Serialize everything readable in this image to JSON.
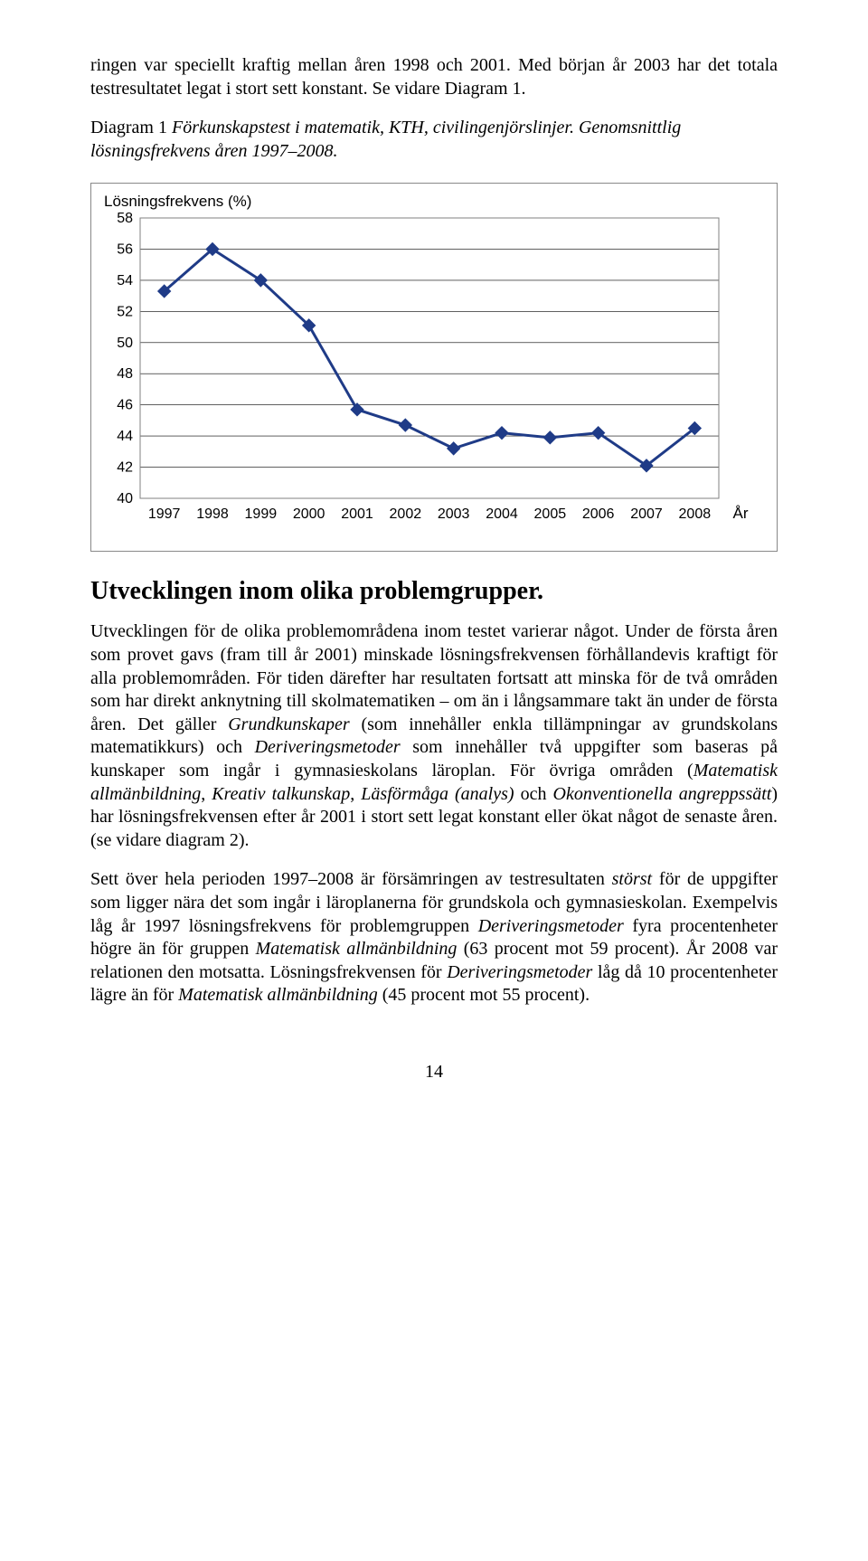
{
  "para1": "ringen var speciellt kraftig mellan åren 1998 och 2001. Med början år 2003 har det totala testresultatet legat i stort sett konstant. Se vidare Diagram 1.",
  "caption_lead": "Diagram 1",
  "caption_rest": " Förkunskapstest i matematik, KTH, civilingenjörslinjer. Genomsnittlig lösningsfrekvens åren 1997–2008.",
  "chart": {
    "type": "line",
    "y_title": "Lösningsfrekvens (%)",
    "x_axis_label": "År",
    "years": [
      "1997",
      "1998",
      "1999",
      "2000",
      "2001",
      "2002",
      "2003",
      "2004",
      "2005",
      "2006",
      "2007",
      "2008"
    ],
    "values": [
      53.3,
      56.0,
      54.0,
      51.1,
      45.7,
      44.7,
      43.2,
      44.2,
      43.9,
      44.2,
      42.1,
      44.5
    ],
    "y_ticks": [
      40,
      42,
      44,
      46,
      48,
      50,
      52,
      54,
      56,
      58
    ],
    "ylim": [
      40,
      58
    ],
    "line_color": "#1f3b87",
    "line_width": 3,
    "marker_fill": "#1f3b87",
    "marker_size": 7,
    "plot_border_color": "#808080",
    "gridline_color": "#000000",
    "background": "#ffffff",
    "tick_font_size": 16,
    "label_font_size": 17
  },
  "h2": "Utvecklingen inom olika problemgrupper.",
  "para2_a": "Utvecklingen för de olika problemområdena inom testet varierar något. Under de första åren som provet gavs (fram till år 2001) minskade lösningsfrekvensen förhållandevis kraftigt för alla problemområden. För tiden därefter har resultaten fortsatt att minska för de två områden som har direkt anknytning till skolmatematiken – om än i långsammare takt än under de första åren. Det gäller ",
  "para2_term1": "Grundkunskaper",
  "para2_b": " (som innehåller enkla tillämpningar av grundskolans matematikkurs) och ",
  "para2_term2": "Deriveringsmetoder",
  "para2_c": " som innehåller två uppgifter som baseras på kunskaper som ingår i gymnasieskolans läroplan. För övriga områden (",
  "para2_term3": "Matematisk allmänbildning",
  "para2_d": ", ",
  "para2_term4": "Kreativ talkunskap",
  "para2_e": ", ",
  "para2_term5": "Läsförmåga (analys)",
  "para2_f": " och ",
  "para2_term6": "Okonventionella angreppssätt",
  "para2_g": ") har lösningsfrekvensen efter år 2001 i stort sett legat konstant eller ökat något de senaste åren. (se vidare diagram 2).",
  "para3_a": "Sett över hela perioden 1997–2008 är försämringen av testresultaten ",
  "para3_term1": "störst",
  "para3_b": " för de uppgifter som ligger nära det som ingår i läroplanerna för grundskola och gymnasieskolan. Exempelvis låg år 1997 lösningsfrekvens för problemgruppen ",
  "para3_term2": "Deriveringsmetoder",
  "para3_c": " fyra procentenheter högre än för gruppen ",
  "para3_term3": "Matematisk allmänbildning",
  "para3_d": " (63 procent mot 59 procent). År 2008 var relationen den motsatta. Lösningsfrekvensen för ",
  "para3_term4": "Deriveringsmetoder",
  "para3_e": " låg då 10 procentenheter lägre än för ",
  "para3_term5": "Matematisk allmänbildning",
  "para3_f": " (45 procent mot 55 procent).",
  "page_number": "14"
}
